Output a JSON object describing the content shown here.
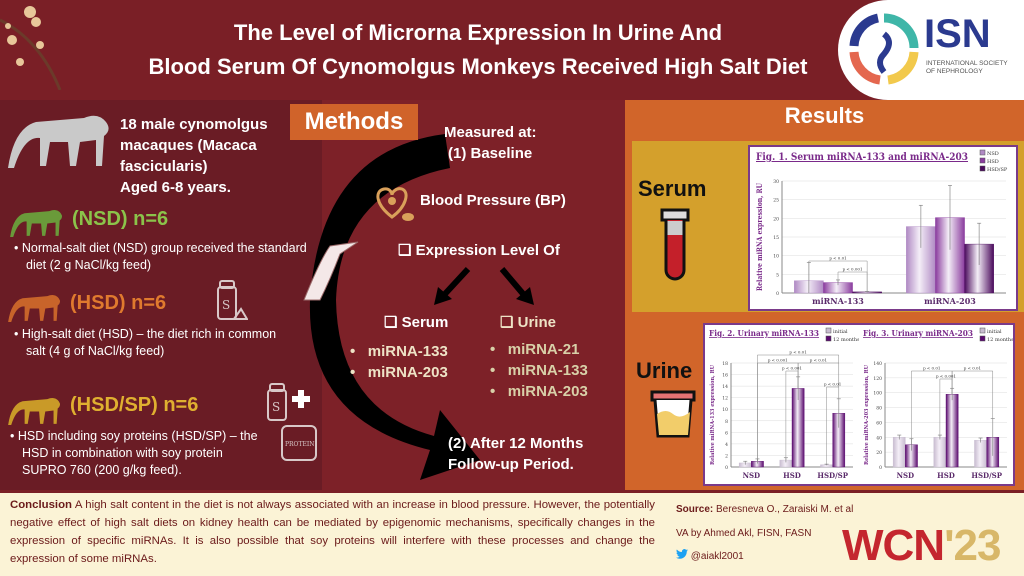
{
  "header": {
    "title_line1": "The Level of Microrna Expression In Urine And",
    "title_line2": "Blood Serum Of Cynomolgus Monkeys Received High Salt Diet",
    "logo": {
      "name": "ISN",
      "subtitle": "INTERNATIONAL SOCIETY OF NEPHROLOGY"
    }
  },
  "subjects": {
    "line1": "18 male cynomolgus",
    "line2": "macaques (Macaca",
    "line3": "fascicularis)",
    "line4": "Aged 6-8 years."
  },
  "groups": [
    {
      "label": "(NSD) n=6",
      "color": "#7cb342",
      "desc": "Normal-salt diet (NSD) group received the standard diet (2 g NaCl/kg feed)"
    },
    {
      "label": "(HSD) n=6",
      "color": "#e07a2e",
      "desc": "High-salt diet (HSD) – the diet rich in common salt (4 g of NaCl/kg feed)"
    },
    {
      "label": "(HSD/SP) n=6",
      "color": "#d9a62e",
      "desc": "HSD including soy proteins (HSD/SP) – the HSD in combination with soy protein SUPRO 760 (200 g/kg feed)."
    }
  ],
  "icons": {
    "protein_label": "PROTEIN",
    "salt_label": "S"
  },
  "methods": {
    "tag": "Methods",
    "measured": "Measured at:",
    "baseline": "(1) Baseline",
    "bp": "Blood Pressure (BP)",
    "expression": "Expression Level Of",
    "serum": {
      "label": "Serum",
      "items": [
        "miRNA-133",
        "miRNA-203"
      ]
    },
    "urine": {
      "label": "Urine",
      "items": [
        "miRNA-21",
        "miRNA-133",
        "miRNA-203"
      ]
    },
    "followup1": "(2) After 12 Months",
    "followup2": "Follow-up Period."
  },
  "results": {
    "title": "Results",
    "serum_label": "Serum",
    "urine_label": "Urine"
  },
  "chart_data": [
    {
      "type": "bar",
      "title": "Fig. 1. Serum miRNA-133 and miRNA-203",
      "ylabel": "Relative miRNA expression, RU",
      "xlabel": "",
      "categories": [
        "miRNA-133",
        "miRNA-203"
      ],
      "ylim": [
        0,
        30
      ],
      "yticks": [
        0,
        5,
        10,
        15,
        20,
        25,
        30
      ],
      "grid": true,
      "legend": "top-right",
      "series": [
        {
          "name": "NSD",
          "values": [
            3.3,
            17.8
          ],
          "err": [
            4.9,
            5.7
          ],
          "color": "#b08ac4"
        },
        {
          "name": "HSD",
          "values": [
            2.8,
            20.2
          ],
          "err": [
            0.7,
            8.6
          ],
          "color": "#8a3c9e"
        },
        {
          "name": "HSD/SP",
          "values": [
            0.3,
            13.1
          ],
          "err": [
            0.1,
            5.6
          ],
          "color": "#4a0a5c"
        }
      ],
      "annotations": [
        {
          "text": "p < 0.01",
          "from": [
            0,
            0
          ],
          "to": [
            0,
            2
          ]
        },
        {
          "text": "p < 0.001",
          "from": [
            0,
            1
          ],
          "to": [
            0,
            2
          ]
        }
      ]
    },
    {
      "type": "bar",
      "title": "Fig. 2. Urinary miRNA-133",
      "ylabel": "Relative miRNA-133 expression, RU",
      "xlabel": "",
      "categories": [
        "NSD",
        "HSD",
        "HSD/SP"
      ],
      "ylim": [
        0,
        18
      ],
      "yticks": [
        0,
        2,
        4,
        6,
        8,
        10,
        12,
        14,
        16,
        18
      ],
      "grid": true,
      "legend": "top-right",
      "series": [
        {
          "name": "initial",
          "values": [
            0.7,
            1.2,
            0.4
          ],
          "err": [
            0.3,
            0.4,
            0.1
          ],
          "color": "#c8bcd0"
        },
        {
          "name": "12 months",
          "values": [
            1.0,
            13.6,
            9.3
          ],
          "err": [
            0.4,
            2.0,
            2.5
          ],
          "color": "#5a0a6e"
        }
      ],
      "annotations": [
        {
          "text": "p < 0.01",
          "from": [
            0,
            1
          ],
          "to": [
            2,
            1
          ]
        },
        {
          "text": "p < 0.001",
          "from": [
            0,
            1
          ],
          "to": [
            1,
            1
          ]
        },
        {
          "text": "p < 0.01",
          "from": [
            1,
            1
          ],
          "to": [
            2,
            1
          ]
        },
        {
          "text": "p < 0.001",
          "from": [
            1,
            0
          ],
          "to": [
            1,
            1
          ]
        },
        {
          "text": "p < 0.01",
          "from": [
            2,
            0
          ],
          "to": [
            2,
            1
          ]
        }
      ]
    },
    {
      "type": "bar",
      "title": "Fig. 3. Urinary miRNA-203",
      "ylabel": "Relative miRNA-203 expression, RU",
      "xlabel": "",
      "categories": [
        "NSD",
        "HSD",
        "HSD/SP"
      ],
      "ylim": [
        0,
        140
      ],
      "yticks": [
        0,
        20,
        40,
        60,
        80,
        100,
        120,
        140
      ],
      "grid": true,
      "legend": "top-right",
      "series": [
        {
          "name": "initial",
          "values": [
            40,
            40,
            36
          ],
          "err": [
            3,
            3,
            3
          ],
          "color": "#c8bcd0"
        },
        {
          "name": "12 months",
          "values": [
            30,
            98,
            40
          ],
          "err": [
            8,
            8,
            25
          ],
          "color": "#5a0a6e"
        }
      ],
      "annotations": [
        {
          "text": "p < 0.01",
          "from": [
            0,
            1
          ],
          "to": [
            1,
            1
          ]
        },
        {
          "text": "p < 0.001",
          "from": [
            1,
            0
          ],
          "to": [
            1,
            1
          ]
        },
        {
          "text": "p < 0.01",
          "from": [
            1,
            1
          ],
          "to": [
            2,
            1
          ]
        }
      ]
    }
  ],
  "footer": {
    "conclusion_label": "Conclusion",
    "conclusion_text": "A high salt content in the diet is not always associated with an increase in blood pressure. However, the potentially negative effect of high salt diets on kidney health can be mediated by epigenomic mechanisms, specifically changes in the expression of specific miRNAs. It is also possible that soy proteins will interfere with these processes and change the expression of some miRNAs.",
    "source_label": "Source:",
    "source_text": "Beresneva O., Zaraiski M. et al",
    "va": "VA by Ahmed Akl, FISN, FASN",
    "twitter": "@aiakl2001",
    "event_logo": {
      "main": "WCN",
      "year": "'23"
    }
  }
}
